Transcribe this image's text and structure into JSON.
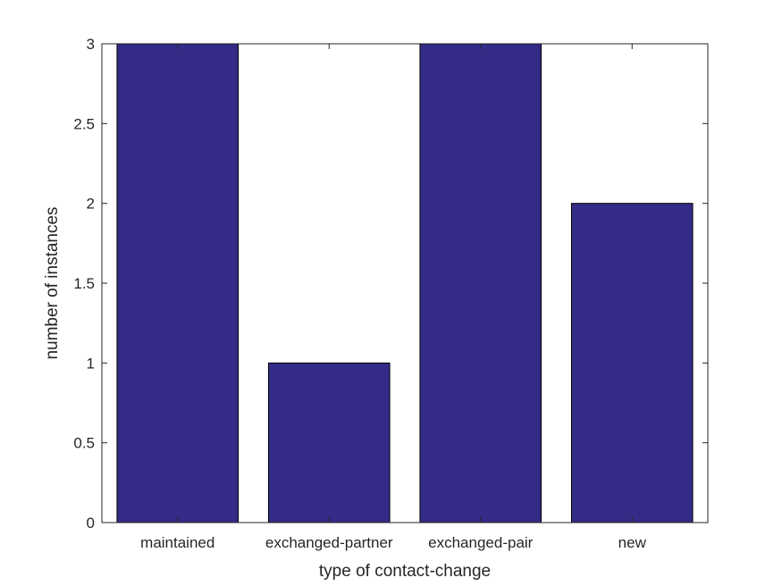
{
  "chart_data": {
    "type": "bar",
    "x_label": "type of contact-change",
    "y_label": "number of instances",
    "categories": [
      "maintained",
      "exchanged-partner",
      "exchanged-pair",
      "new"
    ],
    "values": [
      3,
      1,
      3,
      2
    ],
    "color": "#332b85",
    "ylim": [
      0,
      3
    ],
    "yticks": [
      0,
      0.5,
      1,
      1.5,
      2,
      2.5,
      3
    ],
    "grid": false
  }
}
